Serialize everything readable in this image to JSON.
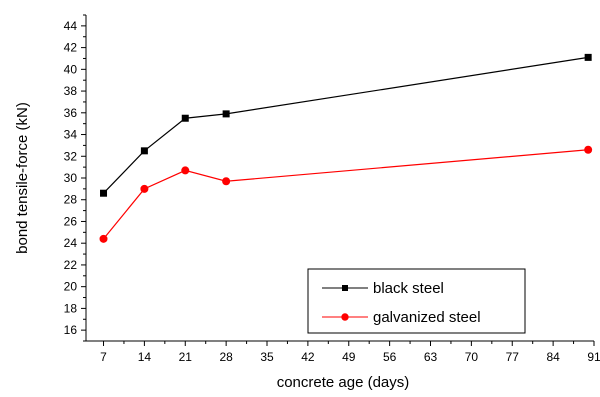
{
  "chart_data": {
    "type": "line",
    "xlabel": "concrete age (days)",
    "ylabel": "bond tensile-force (kN)",
    "xlim": [
      4,
      91
    ],
    "ylim": [
      15,
      45
    ],
    "x_ticks": [
      7,
      14,
      21,
      28,
      35,
      42,
      49,
      56,
      63,
      70,
      77,
      84,
      91
    ],
    "x_tick_labels": [
      "7",
      "14",
      "21",
      "28",
      "35",
      "42",
      "49",
      "56",
      "63",
      "70",
      "77",
      "84",
      "91"
    ],
    "y_ticks": [
      16,
      18,
      20,
      22,
      24,
      26,
      28,
      30,
      32,
      34,
      36,
      38,
      40,
      42,
      44
    ],
    "y_tick_labels": [
      "16",
      "18",
      "20",
      "22",
      "24",
      "26",
      "28",
      "30",
      "32",
      "34",
      "36",
      "38",
      "40",
      "42",
      "44"
    ],
    "grid": false,
    "legend_position": "bottom-right",
    "series": [
      {
        "name": "black steel",
        "color": "#000000",
        "marker": "square",
        "x": [
          7,
          14,
          21,
          28,
          90
        ],
        "y": [
          28.6,
          32.5,
          35.5,
          35.9,
          41.1
        ]
      },
      {
        "name": "galvanized steel",
        "color": "#ff0000",
        "marker": "circle",
        "x": [
          7,
          14,
          21,
          28,
          90
        ],
        "y": [
          24.4,
          29.0,
          30.7,
          29.7,
          32.6
        ]
      }
    ]
  }
}
